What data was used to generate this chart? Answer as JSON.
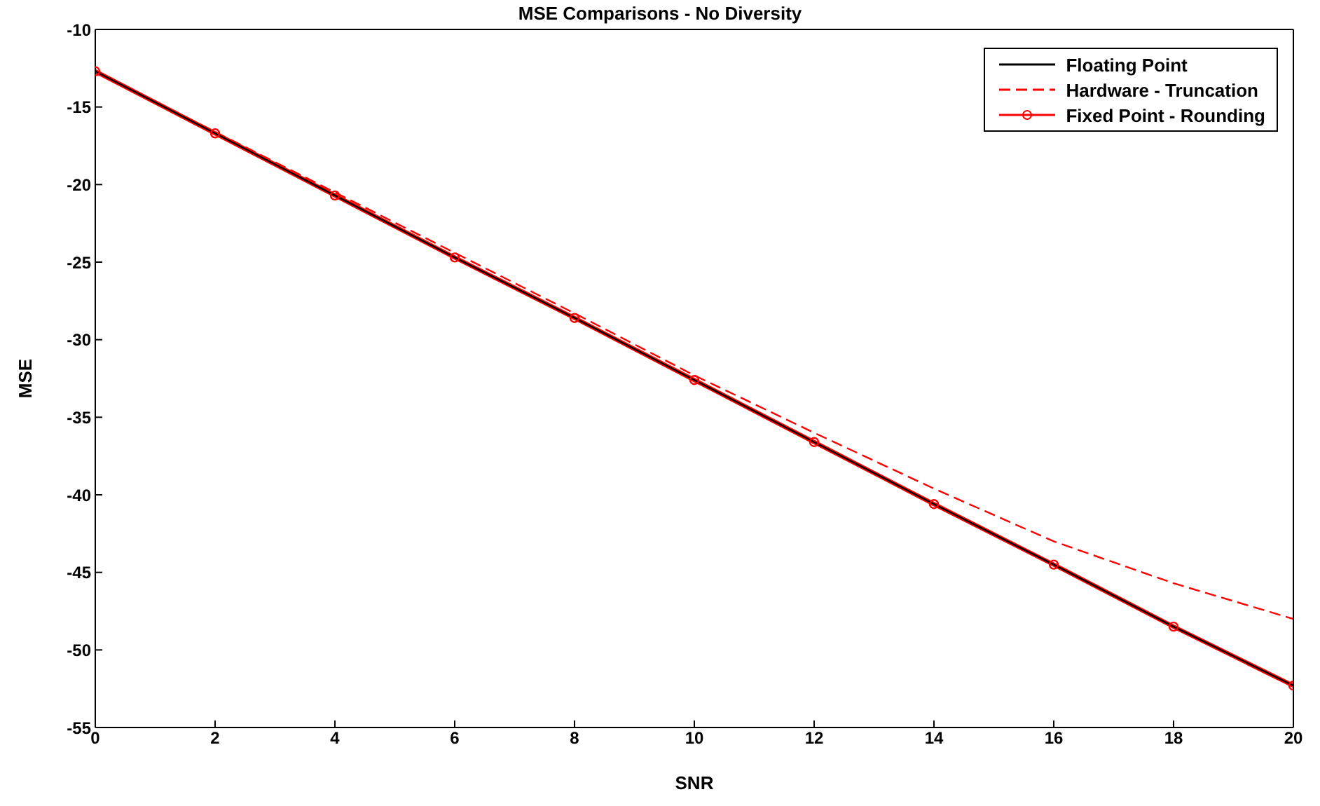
{
  "chart_data": {
    "type": "line",
    "title": "MSE Comparisons - No Diversity",
    "xlabel": "SNR",
    "ylabel": "MSE",
    "x": [
      0,
      2,
      4,
      6,
      8,
      10,
      12,
      14,
      16,
      18,
      20
    ],
    "series": [
      {
        "name": "Floating Point",
        "color": "#000000",
        "marker": "none",
        "line_style": "solid",
        "values": [
          -12.7,
          -16.7,
          -20.7,
          -24.7,
          -28.6,
          -32.6,
          -36.6,
          -40.6,
          -44.5,
          -48.5,
          -52.3
        ]
      },
      {
        "name": "Hardware - Truncation",
        "color": "#ff0000",
        "marker": "none",
        "line_style": "dashed",
        "values": [
          -12.7,
          -16.6,
          -20.5,
          -24.4,
          -28.3,
          -32.3,
          -36.0,
          -39.6,
          -43.0,
          -45.7,
          -48.0
        ]
      },
      {
        "name": "Fixed Point - Rounding",
        "color": "#ff0000",
        "marker": "circle",
        "line_style": "solid",
        "values": [
          -12.7,
          -16.7,
          -20.7,
          -24.7,
          -28.6,
          -32.6,
          -36.6,
          -40.6,
          -44.5,
          -48.5,
          -52.3
        ]
      }
    ],
    "xlim": [
      0,
      20
    ],
    "xticks": [
      0,
      2,
      4,
      6,
      8,
      10,
      12,
      14,
      16,
      18,
      20
    ],
    "ylim": [
      -55,
      -10
    ],
    "yticks": [
      -55,
      -50,
      -45,
      -40,
      -35,
      -30,
      -25,
      -20,
      -15,
      -10
    ],
    "grid": false,
    "legend": "top right"
  }
}
